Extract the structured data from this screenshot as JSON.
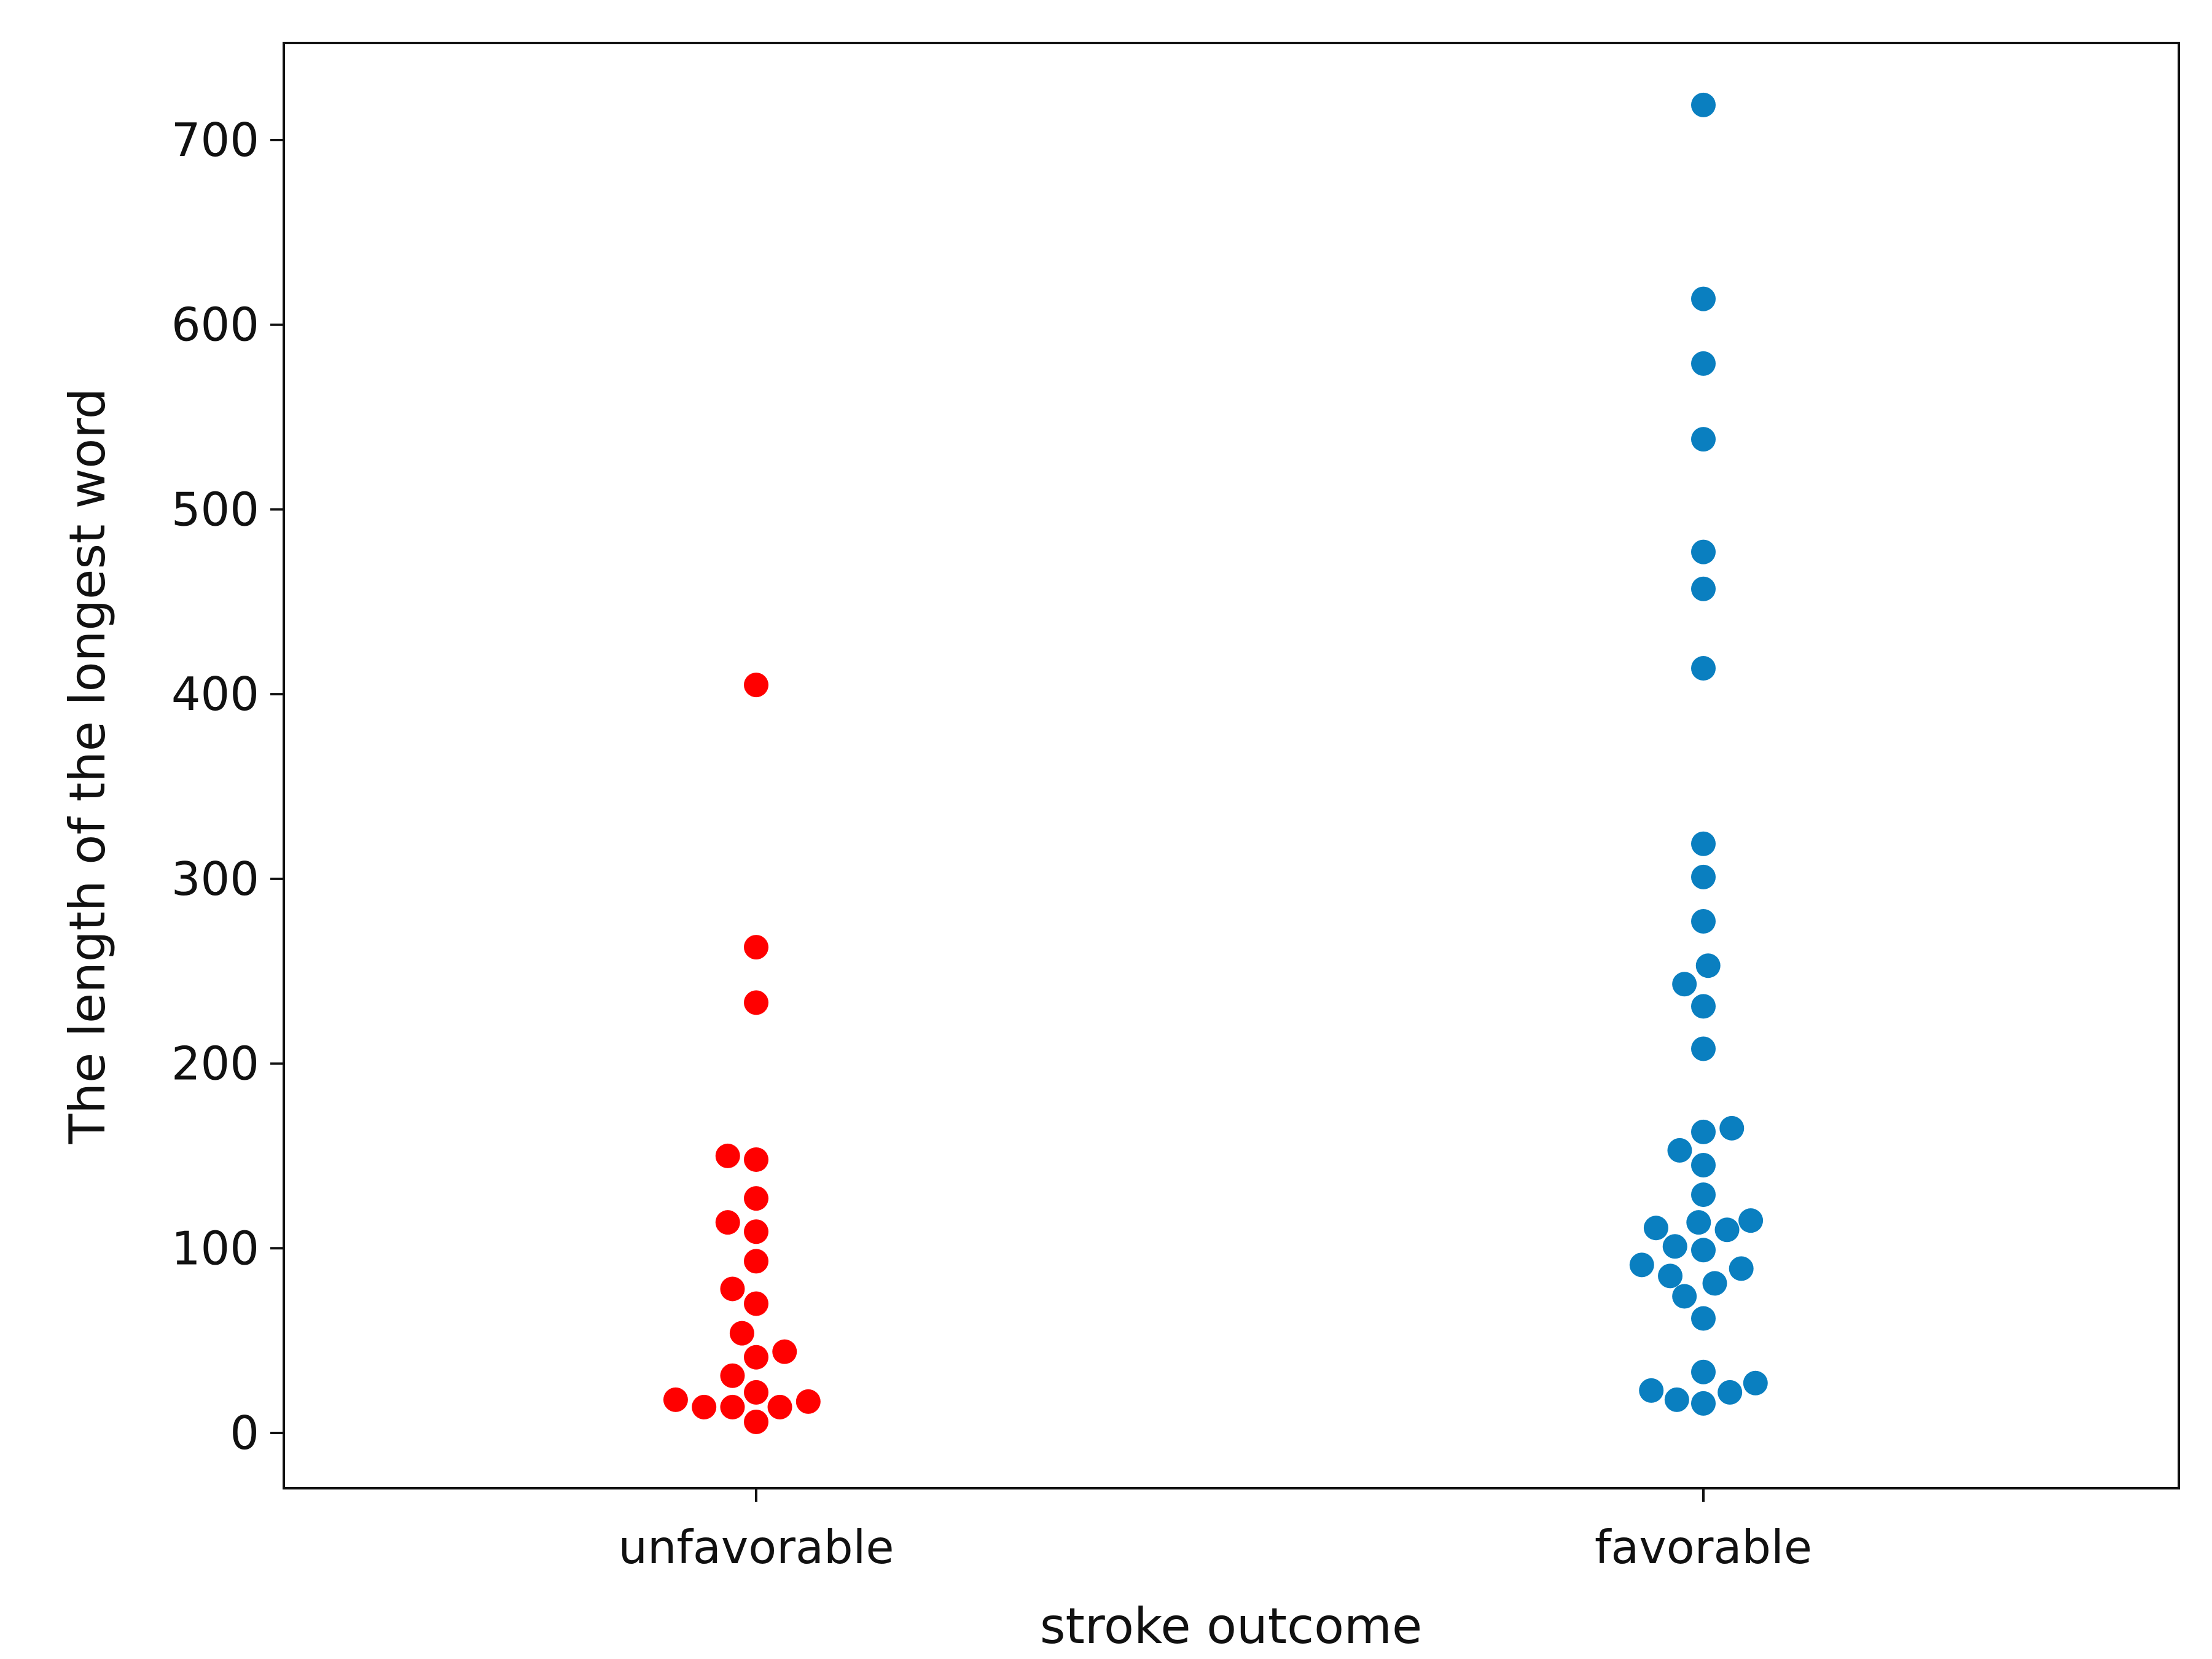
{
  "chart_data": {
    "type": "scatter",
    "variant": "swarm",
    "title": "",
    "xlabel": "stroke outcome",
    "ylabel": "The length of the longest word",
    "categories": [
      "unfavorable",
      "favorable"
    ],
    "ylim": [
      -30,
      750
    ],
    "yticks": [
      0,
      100,
      200,
      300,
      400,
      500,
      600,
      700
    ],
    "grid": false,
    "legend": "none",
    "series": [
      {
        "category": "unfavorable",
        "color": "#ff0000",
        "points": [
          {
            "offset": 0,
            "y": 405
          },
          {
            "offset": 0,
            "y": 263
          },
          {
            "offset": 0,
            "y": 233
          },
          {
            "offset": -0.03,
            "y": 150
          },
          {
            "offset": 0,
            "y": 148
          },
          {
            "offset": 0,
            "y": 127
          },
          {
            "offset": -0.03,
            "y": 114
          },
          {
            "offset": 0,
            "y": 109
          },
          {
            "offset": 0,
            "y": 93
          },
          {
            "offset": -0.025,
            "y": 78
          },
          {
            "offset": 0,
            "y": 70
          },
          {
            "offset": -0.015,
            "y": 54
          },
          {
            "offset": 0.03,
            "y": 44
          },
          {
            "offset": 0,
            "y": 41
          },
          {
            "offset": -0.025,
            "y": 31
          },
          {
            "offset": 0,
            "y": 22
          },
          {
            "offset": -0.085,
            "y": 18
          },
          {
            "offset": 0.055,
            "y": 17
          },
          {
            "offset": -0.055,
            "y": 14
          },
          {
            "offset": -0.025,
            "y": 14
          },
          {
            "offset": 0.025,
            "y": 14
          },
          {
            "offset": 0,
            "y": 6
          }
        ]
      },
      {
        "category": "favorable",
        "color": "#0a7fc0",
        "points": [
          {
            "offset": 0,
            "y": 719
          },
          {
            "offset": 0,
            "y": 614
          },
          {
            "offset": 0,
            "y": 579
          },
          {
            "offset": 0,
            "y": 538
          },
          {
            "offset": 0,
            "y": 477
          },
          {
            "offset": 0,
            "y": 457
          },
          {
            "offset": 0,
            "y": 414
          },
          {
            "offset": 0,
            "y": 319
          },
          {
            "offset": 0,
            "y": 301
          },
          {
            "offset": 0,
            "y": 277
          },
          {
            "offset": 0.005,
            "y": 253
          },
          {
            "offset": -0.02,
            "y": 243
          },
          {
            "offset": 0,
            "y": 231
          },
          {
            "offset": 0,
            "y": 208
          },
          {
            "offset": 0.03,
            "y": 165
          },
          {
            "offset": 0,
            "y": 163
          },
          {
            "offset": -0.025,
            "y": 153
          },
          {
            "offset": 0,
            "y": 145
          },
          {
            "offset": 0,
            "y": 129
          },
          {
            "offset": 0.05,
            "y": 115
          },
          {
            "offset": -0.005,
            "y": 114
          },
          {
            "offset": -0.05,
            "y": 111
          },
          {
            "offset": 0.025,
            "y": 110
          },
          {
            "offset": -0.03,
            "y": 101
          },
          {
            "offset": 0,
            "y": 99
          },
          {
            "offset": -0.065,
            "y": 91
          },
          {
            "offset": 0.04,
            "y": 89
          },
          {
            "offset": -0.035,
            "y": 85
          },
          {
            "offset": 0.012,
            "y": 81
          },
          {
            "offset": -0.02,
            "y": 74
          },
          {
            "offset": 0,
            "y": 62
          },
          {
            "offset": 0,
            "y": 33
          },
          {
            "offset": 0.055,
            "y": 27
          },
          {
            "offset": -0.055,
            "y": 23
          },
          {
            "offset": 0.028,
            "y": 22
          },
          {
            "offset": -0.028,
            "y": 18
          },
          {
            "offset": 0,
            "y": 16
          }
        ]
      }
    ]
  }
}
